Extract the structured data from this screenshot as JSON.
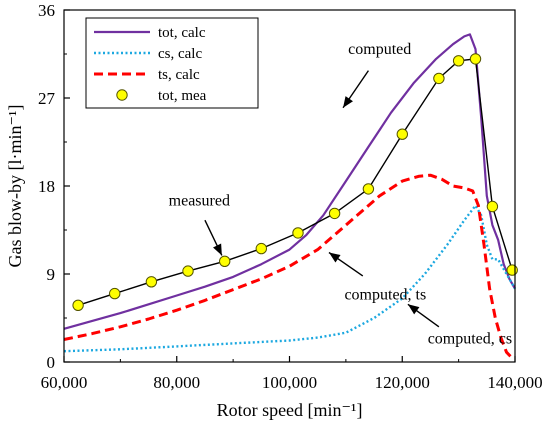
{
  "chart_data": {
    "type": "line",
    "title": "",
    "xlabel": "Rotor speed [min⁻¹]",
    "ylabel": "Gas blow-by [l·min⁻¹]",
    "xlim": [
      60000,
      140000
    ],
    "ylim": [
      0,
      36
    ],
    "xticks": [
      60000,
      80000,
      100000,
      120000,
      140000
    ],
    "xtick_labels": [
      "60,000",
      "80,000",
      "100,000",
      "120,000",
      "140,000"
    ],
    "yticks": [
      0,
      9,
      18,
      27,
      36
    ],
    "ytick_labels": [
      "0",
      "9",
      "18",
      "27",
      "36"
    ],
    "grid": false,
    "legend_position": "top-left",
    "series": [
      {
        "name": "tot, calc",
        "style": "solid",
        "color": "#7030a0",
        "x": [
          60000,
          65000,
          70000,
          75000,
          80000,
          85000,
          90000,
          95000,
          100000,
          103000,
          106000,
          110000,
          114000,
          118000,
          122000,
          126000,
          129000,
          131000,
          132000,
          133000,
          134000,
          135000,
          136000,
          137000,
          138000,
          139000,
          140000
        ],
        "y": [
          3.4,
          4.2,
          5.0,
          5.9,
          6.8,
          7.7,
          8.7,
          10.0,
          11.5,
          13.0,
          15.0,
          18.5,
          22.0,
          25.5,
          28.5,
          31.0,
          32.5,
          33.3,
          33.5,
          32.0,
          25.0,
          17.0,
          14.0,
          12.5,
          10.0,
          8.5,
          7.5
        ]
      },
      {
        "name": "cs, calc",
        "style": "dotted",
        "color": "#1ca8e0",
        "x": [
          60000,
          70000,
          80000,
          90000,
          100000,
          105000,
          110000,
          115000,
          120000,
          124000,
          128000,
          131000,
          133000,
          134000,
          135000,
          136000,
          137000,
          138000,
          139000,
          140000
        ],
        "y": [
          1.1,
          1.3,
          1.6,
          1.9,
          2.2,
          2.5,
          3.0,
          4.5,
          6.5,
          9.0,
          12.0,
          14.5,
          16.0,
          15.0,
          12.0,
          10.5,
          10.5,
          9.5,
          8.5,
          7.5
        ]
      },
      {
        "name": "ts, calc",
        "style": "dashed",
        "color": "#ff0000",
        "x": [
          60000,
          65000,
          70000,
          75000,
          80000,
          85000,
          90000,
          95000,
          100000,
          105000,
          108000,
          112000,
          116000,
          120000,
          123000,
          125000,
          127000,
          129000,
          131000,
          132500,
          133500,
          134500,
          135500,
          136500,
          137500,
          138500,
          139500
        ],
        "y": [
          2.3,
          2.9,
          3.6,
          4.4,
          5.3,
          6.3,
          7.4,
          8.5,
          9.8,
          11.5,
          13.0,
          15.0,
          17.0,
          18.5,
          19.0,
          19.1,
          18.7,
          18.0,
          17.8,
          17.5,
          16.0,
          12.0,
          7.5,
          4.5,
          2.5,
          1.0,
          0.4
        ]
      },
      {
        "name": "tot, mea",
        "style": "markers",
        "color": "#ffff00",
        "x": [
          62500,
          69000,
          75500,
          82000,
          88500,
          95000,
          101500,
          108000,
          114000,
          120000,
          126500,
          130000,
          133000,
          136000,
          139500
        ],
        "y": [
          5.8,
          7.0,
          8.2,
          9.3,
          10.3,
          11.6,
          13.2,
          15.2,
          17.7,
          23.3,
          29.0,
          30.8,
          31.0,
          15.9,
          9.4
        ]
      }
    ],
    "annotations": [
      {
        "label": "computed",
        "text_x": 116000,
        "text_y": 31.5,
        "arrow_from": [
          114000,
          29.8
        ],
        "arrow_to": [
          109500,
          26.0
        ]
      },
      {
        "label": "measured",
        "text_x": 84000,
        "text_y": 16.0,
        "arrow_from": [
          85000,
          14.5
        ],
        "arrow_to": [
          88000,
          10.9
        ]
      },
      {
        "label": "computed, ts",
        "text_x": 117000,
        "text_y": 6.4,
        "arrow_from": [
          113000,
          8.8
        ],
        "arrow_to": [
          107000,
          11.2
        ]
      },
      {
        "label": "computed, cs",
        "text_x": 132000,
        "text_y": 1.9,
        "arrow_from": [
          126500,
          3.6
        ],
        "arrow_to": [
          121000,
          5.9
        ]
      }
    ]
  }
}
